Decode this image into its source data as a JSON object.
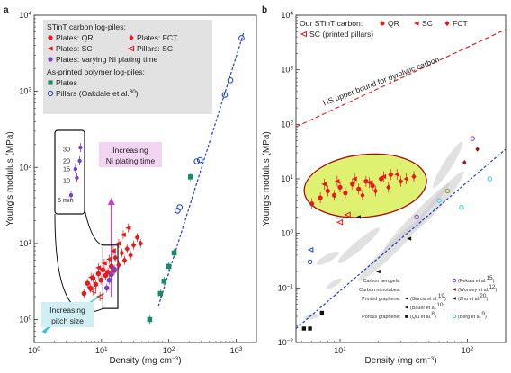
{
  "colors": {
    "qr": "#e41a1c",
    "sc": "#e41a1c",
    "fct": "#e41a1c",
    "ni": "#7b3fc6",
    "plates_polymer": "#1b8a6b",
    "pillars_oakdale": "#1f3fbf",
    "fit_line_a": "#1f3fbf",
    "fit_line_b": "#1f3fbf",
    "hs_line": "#d62728",
    "arrow_pitch": "#39c5d8",
    "arrow_ni": "#d03ad0",
    "ellipse_fill": "#d8ef58",
    "ellipse_stroke": "#a01010",
    "bg_blob": "#c9c9c9",
    "legend_bg": "#e2e2e2"
  },
  "chart_data": [
    {
      "panel": "a",
      "type": "scatter",
      "xlabel_main": "Density (mg cm",
      "xlabel_sup": "−3",
      "xlabel_end": ")",
      "ylabel": "Young's modulus (MPa)",
      "xscale": "log",
      "yscale": "log",
      "xlim": [
        1,
        2000
      ],
      "ylim": [
        0.5,
        10000
      ],
      "xticks": [
        {
          "value": 1,
          "base": "10",
          "exp": "0"
        },
        {
          "value": 10,
          "base": "10",
          "exp": "1"
        },
        {
          "value": 100,
          "base": "10",
          "exp": "2"
        },
        {
          "value": 1000,
          "base": "10",
          "exp": "3"
        }
      ],
      "yticks": [
        {
          "value": 1,
          "base": "10",
          "exp": "0"
        },
        {
          "value": 10,
          "base": "10",
          "exp": "1"
        },
        {
          "value": 100,
          "base": "10",
          "exp": "2"
        },
        {
          "value": 1000,
          "base": "10",
          "exp": "3"
        },
        {
          "value": 10000,
          "base": "10",
          "exp": "4"
        }
      ],
      "legend": {
        "header": "STinT carbon log-piles:",
        "header2": "As-printed polymer log-piles:",
        "entries": [
          {
            "key": "qr",
            "label": "Plates: QR"
          },
          {
            "key": "fct",
            "label": "Plates: FCT"
          },
          {
            "key": "sc_plates",
            "label": "Plates: SC"
          },
          {
            "key": "sc_pillars",
            "label": "Pillars: SC"
          },
          {
            "key": "ni",
            "label": "Plates: varying Ni plating time"
          },
          {
            "key": "plates_polymer",
            "label": "Plates"
          },
          {
            "key": "pillars_oakdale",
            "label": "Pillars (Oakdale et al.",
            "sup": "30",
            "end": ")"
          }
        ]
      },
      "series": [
        {
          "name": "Plates: QR",
          "marker": "circle",
          "color_key": "qr",
          "x": [
            5.5,
            6.2,
            6.8,
            7.5,
            8.2,
            9.0,
            9.8,
            10.5,
            11.5,
            12.5,
            14,
            15.5
          ],
          "y": [
            2.2,
            3.0,
            2.6,
            3.5,
            2.9,
            4.0,
            3.3,
            4.5,
            3.8,
            4.2,
            5.0,
            4.4
          ]
        },
        {
          "name": "Plates: FCT",
          "marker": "diamond",
          "color_key": "fct",
          "x": [
            16,
            18,
            20,
            22,
            24,
            27,
            30,
            34,
            38
          ],
          "y": [
            6.5,
            5.2,
            7.5,
            6.0,
            8.5,
            7.0,
            9.5,
            12,
            10
          ]
        },
        {
          "name": "Plates: SC",
          "marker": "tri_left",
          "color_key": "sc",
          "x": [
            7,
            9,
            11,
            13,
            15,
            18,
            21,
            25
          ],
          "y": [
            3.6,
            4.8,
            5.5,
            6.2,
            8.0,
            10,
            13,
            16
          ]
        },
        {
          "name": "Pillars: SC",
          "marker": "tri_left_open",
          "color_key": "sc",
          "x": [
            6.0,
            7.5,
            9.5
          ],
          "y": [
            1.4,
            2.4,
            2.0
          ]
        },
        {
          "name": "Plates: varying Ni plating time",
          "marker": "circle",
          "color_key": "ni",
          "x": [
            12.0,
            13.0,
            14.0,
            15.5
          ],
          "y": [
            2.6,
            3.3,
            3.9,
            4.6
          ]
        },
        {
          "name": "Plates",
          "marker": "square",
          "color_key": "plates_polymer",
          "x": [
            52,
            75,
            85,
            100,
            120,
            210
          ],
          "y": [
            1.0,
            2.2,
            3.2,
            5.0,
            7.5,
            75
          ]
        },
        {
          "name": "Pillars (Oakdale et al.30)",
          "marker": "circle_open",
          "color_key": "pillars_oakdale",
          "x": [
            135,
            145,
            260,
            290,
            680,
            820,
            1200
          ],
          "y": [
            27,
            30,
            120,
            125,
            900,
            1400,
            5000
          ]
        }
      ],
      "fit_line": {
        "x": [
          70,
          1300
        ],
        "y": [
          1.5,
          6000
        ]
      },
      "pitch_arrow": {
        "from": [
          11,
          2.2
        ],
        "to": [
          1.3,
          0.7
        ]
      },
      "ni_arrow": {
        "from": [
          14,
          2.0
        ],
        "to": [
          14,
          40
        ]
      },
      "zoom_box": {
        "x": [
          10.5,
          17.5
        ],
        "y": [
          1.4,
          9.5
        ]
      },
      "inset": {
        "ticks": [
          "30",
          "20",
          "15",
          "10"
        ],
        "label": "5 min",
        "x": [
          1,
          1.6,
          1.8,
          2.2,
          2.3
        ],
        "y": [
          6,
          15,
          11,
          20,
          32
        ],
        "ylim": [
          4,
          40
        ]
      },
      "annotations": {
        "ni_line1": "Increasing",
        "ni_line2": "Ni plating time",
        "pitch_line1": "Increasing",
        "pitch_line2": "pitch size"
      }
    },
    {
      "panel": "b",
      "type": "scatter",
      "xlabel_main": "Density (mg cm",
      "xlabel_sup": "−3",
      "xlabel_end": ")",
      "ylabel": "Young's modulus (MPa)",
      "xscale": "log",
      "yscale": "log",
      "xlim": [
        4.5,
        200
      ],
      "ylim": [
        0.01,
        10000
      ],
      "xticks": [
        {
          "value": 10,
          "base": "10",
          "exp": "1"
        },
        {
          "value": 100,
          "base": "10",
          "exp": "2"
        }
      ],
      "yticks": [
        {
          "value": 0.01,
          "base": "10",
          "exp": "−2"
        },
        {
          "value": 0.1,
          "base": "10",
          "exp": "−1"
        },
        {
          "value": 1,
          "base": "10",
          "exp": "0"
        },
        {
          "value": 10,
          "base": "10",
          "exp": "1"
        },
        {
          "value": 100,
          "base": "10",
          "exp": "2"
        },
        {
          "value": 1000,
          "base": "10",
          "exp": "3"
        },
        {
          "value": 10000,
          "base": "10",
          "exp": "4"
        }
      ],
      "legend": {
        "header": "Our STinT carbon:",
        "entries": [
          {
            "key": "qr",
            "label": "QR"
          },
          {
            "key": "sc",
            "label": "SC"
          },
          {
            "key": "fct",
            "label": "FCT"
          },
          {
            "key": "sc_pillars",
            "label": "SC (printed pillars)"
          }
        ]
      },
      "hs_label": "HS upper bound for pyrolytic carbon",
      "hs_line": {
        "x": [
          4.5,
          200
        ],
        "y": [
          90,
          5500
        ]
      },
      "fit_line": {
        "x": [
          4.5,
          200
        ],
        "y": [
          0.018,
          35
        ]
      },
      "ellipse": {
        "cx": 14,
        "cy": 6.5,
        "x_span": [
          5.2,
          48
        ],
        "y_span": [
          2.0,
          28
        ]
      },
      "series": [
        {
          "name": "QR",
          "marker": "circle",
          "color_key": "qr",
          "x": [
            6,
            7,
            8,
            9,
            10,
            11,
            12.5,
            14,
            16,
            18,
            21,
            25
          ],
          "y": [
            3.5,
            4.5,
            6,
            5,
            7,
            5.5,
            8,
            6.5,
            9,
            7.5,
            10,
            12
          ]
        },
        {
          "name": "SC",
          "marker": "tri_left",
          "color_key": "sc",
          "x": [
            7.5,
            9.5,
            13,
            17,
            22,
            28,
            33
          ],
          "y": [
            8,
            9,
            10,
            8.5,
            11,
            12,
            10
          ]
        },
        {
          "name": "FCT",
          "marker": "diamond",
          "color_key": "fct",
          "x": [
            15,
            19,
            24,
            30,
            38
          ],
          "y": [
            5,
            6,
            7,
            9,
            11
          ]
        },
        {
          "name": "SC (printed pillars)",
          "marker": "tri_left_open",
          "color_key": "sc",
          "x": [
            10,
            11.5
          ],
          "y": [
            1.6,
            2.2
          ]
        }
      ],
      "reference_labels": {
        "carbon_aerogels": "Carbon aerogels:",
        "carbon_nanotubes": "Carbon nanotubes:",
        "printed_graphene": "Printed graphene:",
        "porous_graphene": "Porous graphene:",
        "refs": [
          {
            "label": "(Pekala et al.",
            "sup": "15",
            "end": ")"
          },
          {
            "label": "(Worsley et al.",
            "sup": "12",
            "end": ")"
          },
          {
            "label": "(Garcia et al.",
            "sup": "19",
            "end": ")"
          },
          {
            "label": "(Zhu et al.",
            "sup": "20",
            "end": ")"
          },
          {
            "label": "(Bauer et al.",
            "sup": "10",
            "end": ")"
          },
          {
            "label": "(Qiu et al.",
            "sup": "8",
            "end": ")"
          },
          {
            "label": "(Berg et al.",
            "sup": "9",
            "end": ")"
          }
        ]
      }
    }
  ]
}
